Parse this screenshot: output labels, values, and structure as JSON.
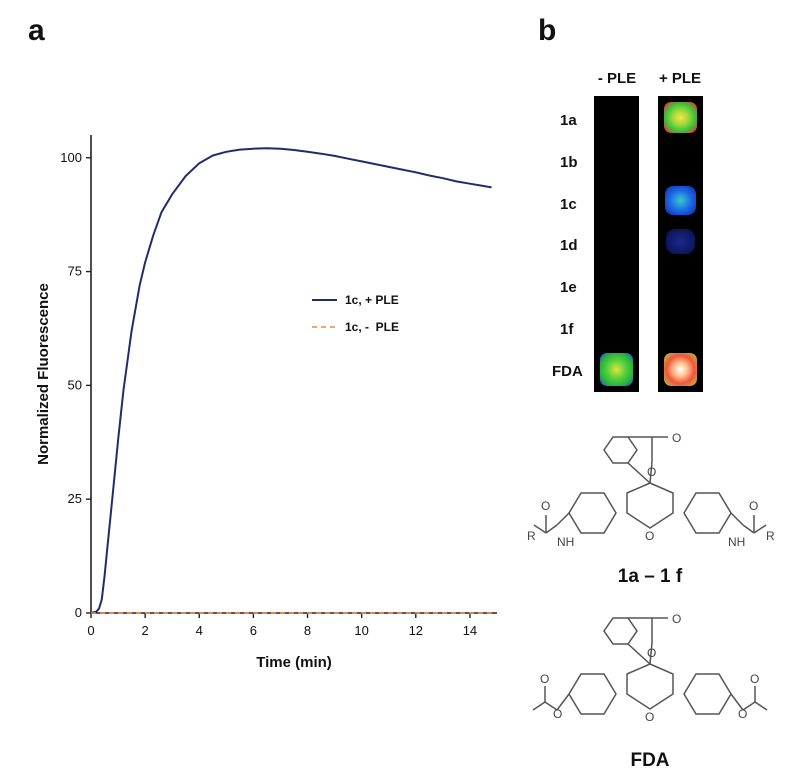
{
  "panel_a": {
    "letter": "a"
  },
  "panel_b": {
    "letter": "b"
  },
  "chart_data": {
    "type": "line",
    "title": "",
    "xlabel": "Time (min)",
    "ylabel": "Normalized Fluorescence",
    "xlim": [
      0,
      15
    ],
    "ylim": [
      0,
      105
    ],
    "xticks": [
      0,
      2,
      4,
      6,
      8,
      10,
      12,
      14
    ],
    "yticks": [
      0,
      25,
      50,
      75,
      100
    ],
    "grid": false,
    "legend_position": "center-right",
    "series": [
      {
        "name": "1c, + PLE",
        "style": "solid",
        "color": "#1f2d6b",
        "x": [
          0,
          0.2,
          0.3,
          0.4,
          0.5,
          0.6,
          0.8,
          1.0,
          1.2,
          1.5,
          1.8,
          2.0,
          2.3,
          2.6,
          3.0,
          3.5,
          4.0,
          4.5,
          5.0,
          5.5,
          6.0,
          6.5,
          7.0,
          7.5,
          8.0,
          8.5,
          9.0,
          9.5,
          10.0,
          10.5,
          11.0,
          11.5,
          12.0,
          12.5,
          13.0,
          13.5,
          14.0,
          14.5,
          14.8
        ],
        "y": [
          0,
          0.3,
          1,
          3,
          8,
          14,
          26,
          38,
          49,
          62,
          72,
          77,
          83,
          88,
          92,
          96,
          98.8,
          100.5,
          101.3,
          101.8,
          102,
          102.1,
          102,
          101.7,
          101.3,
          100.9,
          100.4,
          99.8,
          99.2,
          98.6,
          98,
          97.4,
          96.8,
          96.1,
          95.5,
          94.8,
          94.3,
          93.8,
          93.5
        ]
      },
      {
        "name": "1c, -  PLE",
        "style": "dashed",
        "color": "#e8893a",
        "x": [
          0,
          14.8
        ],
        "y": [
          0,
          0
        ]
      }
    ]
  },
  "imaging": {
    "columns": [
      "- PLE",
      "+ PLE"
    ],
    "rows": [
      "1a",
      "1b",
      "1c",
      "1d",
      "1e",
      "1f",
      "FDA"
    ],
    "signal": {
      "minus_PLE": [
        "none",
        "none",
        "none",
        "none",
        "none",
        "none",
        "strong-green"
      ],
      "plus_PLE": [
        "strong-green-red",
        "none",
        "moderate-blue-green",
        "weak-blue",
        "none",
        "none",
        "saturated-red-white"
      ]
    }
  },
  "structures": {
    "compound_series": {
      "caption": "1a – 1 f",
      "substituent": "R",
      "heteroatoms": [
        "O",
        "O",
        "O",
        "O",
        "O",
        "NH",
        "NH"
      ]
    },
    "fda": {
      "caption": "FDA",
      "heteroatoms": [
        "O",
        "O",
        "O",
        "O",
        "O",
        "O",
        "O"
      ]
    }
  }
}
